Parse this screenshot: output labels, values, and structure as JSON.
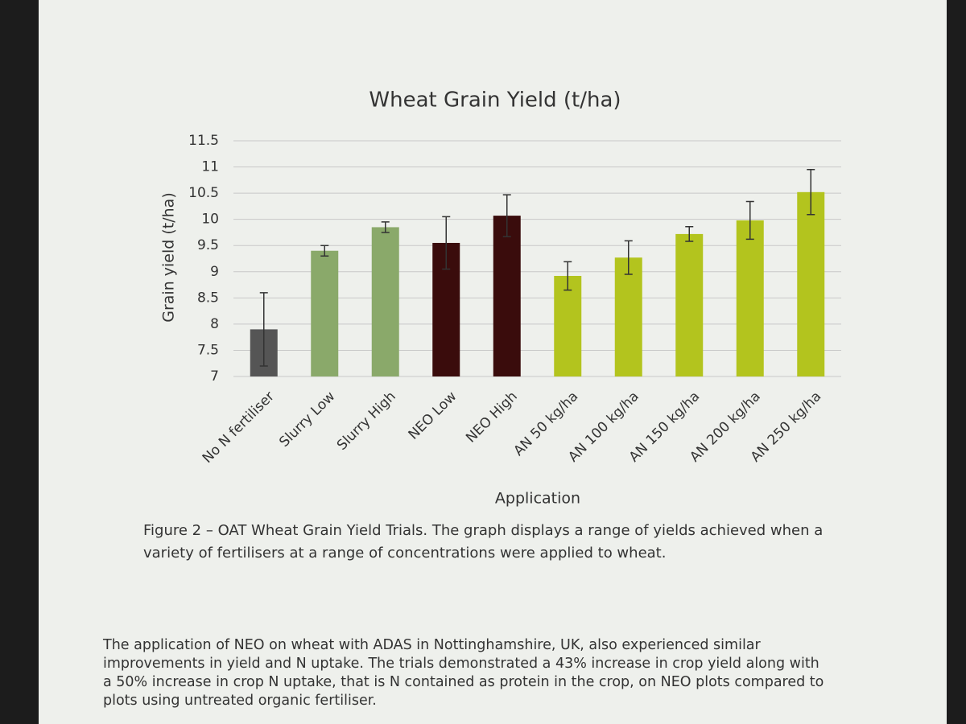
{
  "chart_data": {
    "type": "bar",
    "title": "Wheat Grain Yield (t/ha)",
    "x_label": "Application",
    "y_label": "Grain yield (t/ha)",
    "categories": [
      "No N fertiliser",
      "Slurry Low",
      "Slurry High",
      "NEO Low",
      "NEO High",
      "AN 50 kg/ha",
      "AN 100 kg/ha",
      "AN 150 kg/ha",
      "AN 200 kg/ha",
      "AN 250 kg/ha"
    ],
    "values": [
      7.9,
      9.4,
      9.85,
      9.55,
      10.07,
      8.92,
      9.27,
      9.72,
      9.98,
      10.52
    ],
    "errors": [
      0.7,
      0.1,
      0.1,
      0.5,
      0.4,
      0.27,
      0.32,
      0.14,
      0.36,
      0.43
    ],
    "colors": [
      "#555555",
      "#8aa96a",
      "#8aa96a",
      "#3a0c0c",
      "#3a0c0c",
      "#b3c41e",
      "#b3c41e",
      "#b3c41e",
      "#b3c41e",
      "#b3c41e"
    ],
    "ylim": [
      7,
      11.5
    ],
    "yticks": [
      7,
      7.5,
      8,
      8.5,
      9,
      9.5,
      10,
      10.5,
      11,
      11.5
    ],
    "grid": true
  },
  "caption": [
    "Figure 2 – OAT Wheat Grain Yield Trials. The graph displays a range of yields achieved when a",
    "variety of fertilisers at a range of concentrations were applied to wheat."
  ],
  "paragraph": [
    "The application of NEO on wheat with ADAS in Nottinghamshire, UK, also experienced similar",
    "improvements in yield and N uptake. The trials demonstrated a 43% increase in crop yield along with",
    "a 50% increase in crop N uptake, that is N contained as protein in the crop, on NEO plots compared to",
    "plots using untreated organic fertiliser."
  ]
}
